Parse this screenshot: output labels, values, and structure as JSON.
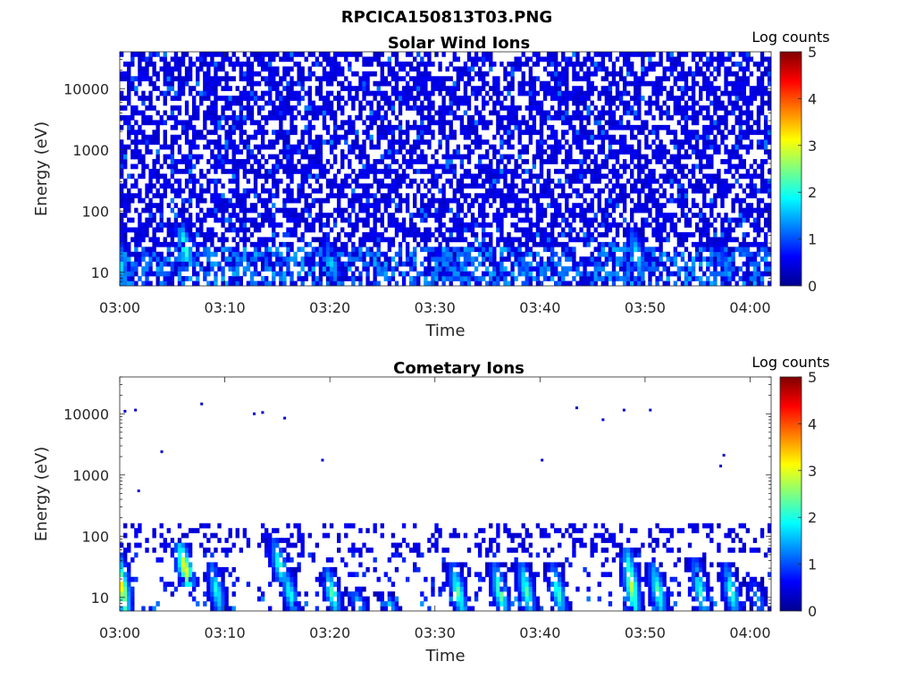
{
  "figure": {
    "title": "RPCICA150813T03.PNG"
  },
  "chart_data": [
    {
      "type": "heatmap",
      "title": "Solar Wind Ions",
      "xlabel": "Time",
      "ylabel": "Energy (eV)",
      "x_range": [
        "03:00",
        "04:02"
      ],
      "x_ticks": [
        "03:00",
        "03:10",
        "03:20",
        "03:30",
        "03:40",
        "03:50",
        "04:00"
      ],
      "y_scale": "log",
      "y_range": [
        6,
        40000
      ],
      "y_ticks": [
        10,
        100,
        1000,
        10000
      ],
      "y_tick_labels": [
        "10",
        "100",
        "1000",
        "10000"
      ],
      "colorbar": {
        "label": "Log counts",
        "range": [
          0,
          5
        ],
        "ticks": [
          "0",
          "1",
          "2",
          "3",
          "4",
          "5"
        ],
        "colormap": "jet"
      },
      "pattern": "noise",
      "bursts": [
        {
          "t_min": 0.3,
          "e_low": 8,
          "e_high": 50,
          "peak_log_counts": 2.0
        },
        {
          "t_min": 6.5,
          "e_low": 15,
          "e_high": 70,
          "peak_log_counts": 2.5
        },
        {
          "t_min": 20.5,
          "e_low": 8,
          "e_high": 35,
          "peak_log_counts": 1.8
        },
        {
          "t_min": 32.0,
          "e_low": 8,
          "e_high": 20,
          "peak_log_counts": 1.6
        },
        {
          "t_min": 49.5,
          "e_low": 12,
          "e_high": 50,
          "peak_log_counts": 2.0
        },
        {
          "t_min": 58.0,
          "e_low": 8,
          "e_high": 30,
          "peak_log_counts": 1.4
        }
      ]
    },
    {
      "type": "heatmap",
      "title": "Cometary Ions",
      "xlabel": "Time",
      "ylabel": "Energy (eV)",
      "x_range": [
        "03:00",
        "04:02"
      ],
      "x_ticks": [
        "03:00",
        "03:10",
        "03:20",
        "03:30",
        "03:40",
        "03:50",
        "04:00"
      ],
      "y_scale": "log",
      "y_range": [
        6,
        40000
      ],
      "y_ticks": [
        10,
        100,
        1000,
        10000
      ],
      "y_tick_labels": [
        "10",
        "100",
        "1000",
        "10000"
      ],
      "colorbar": {
        "label": "Log counts",
        "range": [
          0,
          5
        ],
        "ticks": [
          "0",
          "1",
          "2",
          "3",
          "4",
          "5"
        ],
        "colormap": "jet"
      },
      "pattern": "sparse",
      "bursts": [
        {
          "t_min": 0.5,
          "e_low": 7,
          "e_high": 55,
          "peak_log_counts": 3.4
        },
        {
          "t_min": 6.5,
          "e_low": 18,
          "e_high": 80,
          "peak_log_counts": 3.6
        },
        {
          "t_min": 9.5,
          "e_low": 7,
          "e_high": 40,
          "peak_log_counts": 2.2
        },
        {
          "t_min": 15.5,
          "e_low": 20,
          "e_high": 90,
          "peak_log_counts": 2.4
        },
        {
          "t_min": 16.5,
          "e_low": 7,
          "e_high": 30,
          "peak_log_counts": 2.2
        },
        {
          "t_min": 20.5,
          "e_low": 7,
          "e_high": 30,
          "peak_log_counts": 2.5
        },
        {
          "t_min": 23.0,
          "e_low": 6,
          "e_high": 15,
          "peak_log_counts": 1.8
        },
        {
          "t_min": 26.0,
          "e_low": 6,
          "e_high": 12,
          "peak_log_counts": 1.8
        },
        {
          "t_min": 32.5,
          "e_low": 7,
          "e_high": 35,
          "peak_log_counts": 2.6
        },
        {
          "t_min": 36.5,
          "e_low": 7,
          "e_high": 35,
          "peak_log_counts": 2.7
        },
        {
          "t_min": 39.0,
          "e_low": 7,
          "e_high": 40,
          "peak_log_counts": 2.5
        },
        {
          "t_min": 42.0,
          "e_low": 7,
          "e_high": 35,
          "peak_log_counts": 2.4
        },
        {
          "t_min": 49.0,
          "e_low": 7,
          "e_high": 70,
          "peak_log_counts": 3.0
        },
        {
          "t_min": 51.5,
          "e_low": 7,
          "e_high": 40,
          "peak_log_counts": 2.5
        },
        {
          "t_min": 55.5,
          "e_low": 7,
          "e_high": 45,
          "peak_log_counts": 2.3
        },
        {
          "t_min": 58.5,
          "e_low": 7,
          "e_high": 35,
          "peak_log_counts": 2.4
        },
        {
          "t_min": 61.0,
          "e_low": 6,
          "e_high": 20,
          "peak_log_counts": 1.6
        }
      ],
      "isolated_points": [
        {
          "t_min": 0.5,
          "e": 11000
        },
        {
          "t_min": 1.5,
          "e": 11500
        },
        {
          "t_min": 7.8,
          "e": 14500
        },
        {
          "t_min": 12.8,
          "e": 10000
        },
        {
          "t_min": 13.6,
          "e": 10500
        },
        {
          "t_min": 15.7,
          "e": 8500
        },
        {
          "t_min": 4.0,
          "e": 2400
        },
        {
          "t_min": 19.3,
          "e": 1750
        },
        {
          "t_min": 40.2,
          "e": 1750
        },
        {
          "t_min": 43.5,
          "e": 12500
        },
        {
          "t_min": 46.0,
          "e": 8000
        },
        {
          "t_min": 48.0,
          "e": 11500
        },
        {
          "t_min": 50.5,
          "e": 11500
        },
        {
          "t_min": 57.2,
          "e": 1400
        },
        {
          "t_min": 57.5,
          "e": 2100
        },
        {
          "t_min": 1.8,
          "e": 550
        }
      ]
    }
  ]
}
